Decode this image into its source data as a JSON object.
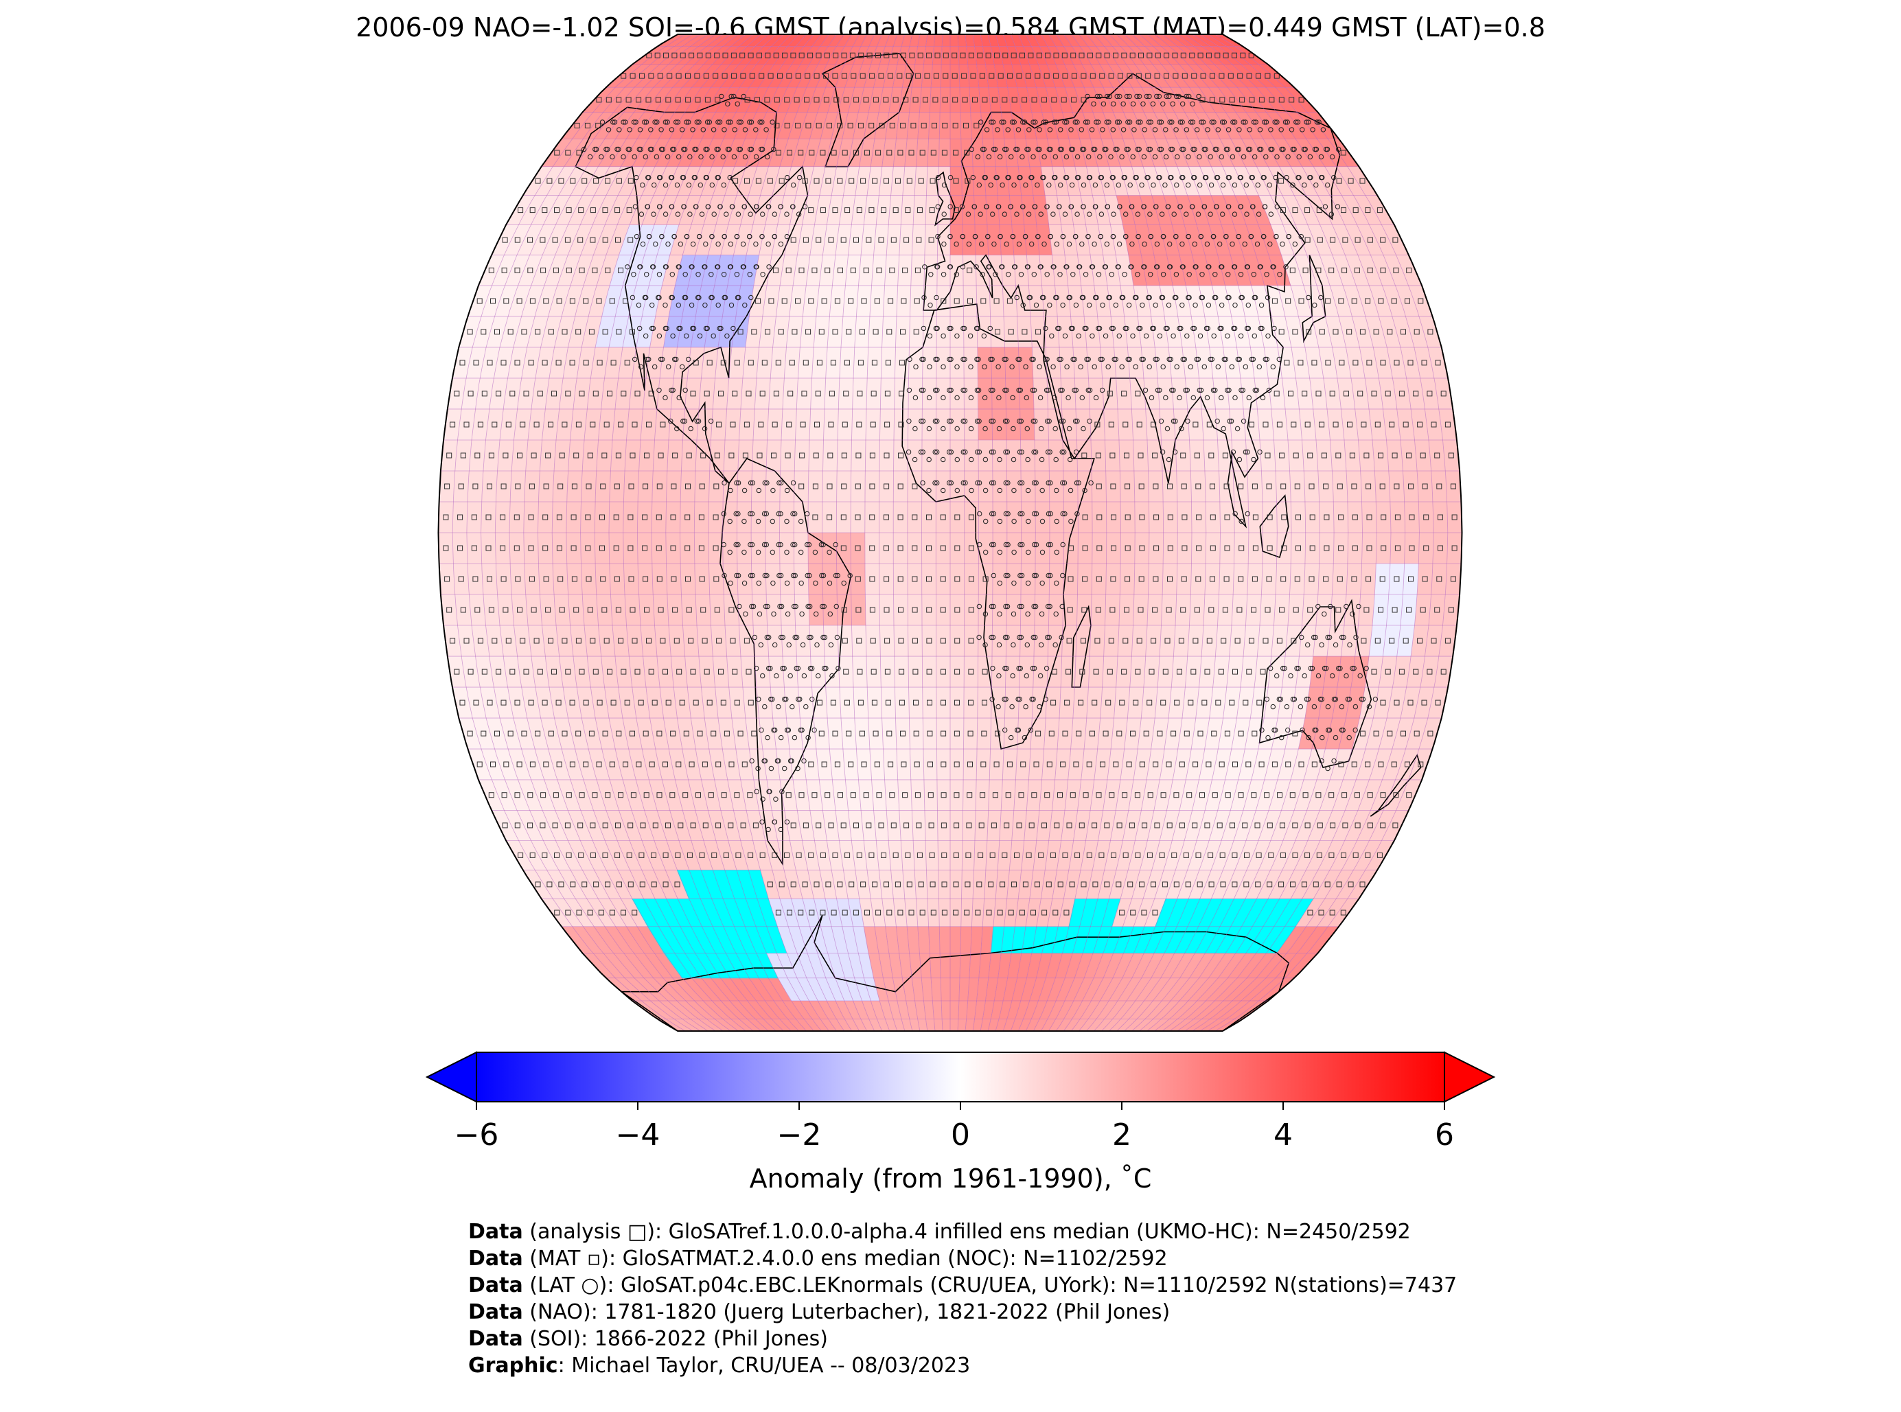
{
  "title": "2006-09 NAO=-1.02 SOI=-0.6 GMST (analysis)=0.584 GMST (MAT)=0.449 GMST (LAT)=0.8",
  "colorbar": {
    "ticks": [
      "−6",
      "−4",
      "−2",
      "0",
      "2",
      "4",
      "6"
    ],
    "tick_values": [
      -6,
      -4,
      -2,
      0,
      2,
      4,
      6
    ],
    "range": [
      -6,
      6
    ],
    "label": "Anomaly (from 1961-1990), ˚C",
    "colors": {
      "low": "#0000ff",
      "mid": "#ffffff",
      "high": "#ff0000",
      "missing": "#00ffff"
    }
  },
  "map": {
    "projection": "Robinson",
    "grid_color": "#b060c0",
    "coastline_color": "#000000"
  },
  "footer": [
    {
      "key": "Data",
      "text": " (analysis □): GloSATref.1.0.0.0-alpha.4 infilled ens median (UKMO-HC): N=2450/2592"
    },
    {
      "key": "Data",
      "text": " (MAT ▫): GloSATMAT.2.4.0.0 ens median (NOC): N=1102/2592"
    },
    {
      "key": "Data",
      "text": " (LAT ○): GloSAT.p04c.EBC.LEKnormals (CRU/UEA, UYork): N=1110/2592 N(stations)=7437"
    },
    {
      "key": "Data",
      "text": " (NAO): 1781-1820 (Juerg Luterbacher), 1821-2022 (Phil Jones)"
    },
    {
      "key": "Data",
      "text": " (SOI): 1866-2022 (Phil Jones)"
    },
    {
      "key": "Graphic",
      "text": ": Michael Taylor, CRU/UEA -- 08/03/2023"
    }
  ]
}
